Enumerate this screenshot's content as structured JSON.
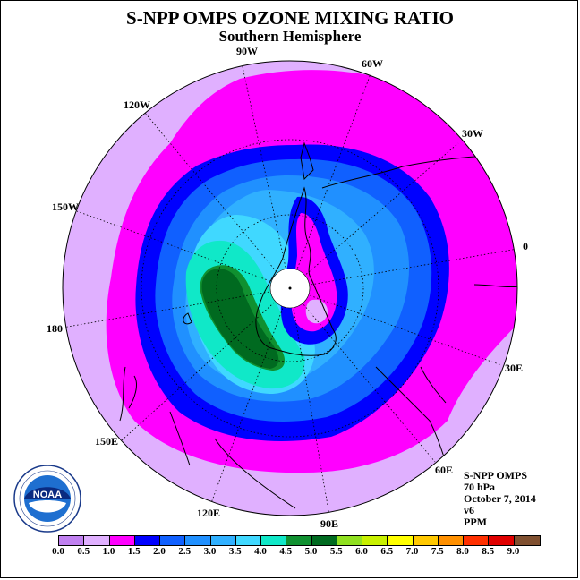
{
  "title": "S-NPP OMPS OZONE MIXING RATIO",
  "subtitle": "Southern Hemisphere",
  "longitude_labels": [
    "90W",
    "60W",
    "30W",
    "0",
    "30E",
    "60E",
    "90E",
    "120E",
    "150E",
    "180",
    "150W",
    "120W"
  ],
  "info": {
    "instrument": "S-NPP OMPS",
    "level": "70 hPa",
    "date": "October 7, 2014",
    "version": "v6",
    "units": "PPM"
  },
  "logo": {
    "text": "NOAA",
    "ring_text": "NATIONAL OCEANIC AND ATMOSPHERIC ADMINISTRATION · U.S. DEPARTMENT OF COMMERCE"
  },
  "colorbar": {
    "ticks": [
      "0.0",
      "0.5",
      "1.0",
      "1.5",
      "2.0",
      "2.5",
      "3.0",
      "3.5",
      "4.0",
      "4.5",
      "5.0",
      "5.5",
      "6.0",
      "6.5",
      "7.0",
      "7.5",
      "8.0",
      "8.5",
      "9.0"
    ],
    "colors": [
      "#c080f0",
      "#e0b0ff",
      "#ff00ff",
      "#0000ff",
      "#1060ff",
      "#2090ff",
      "#30b0ff",
      "#40d8ff",
      "#10e8c8",
      "#109030",
      "#006a20",
      "#90e020",
      "#c8f000",
      "#ffff00",
      "#ffc800",
      "#ff9000",
      "#ff3000",
      "#e00000",
      "#805030"
    ]
  },
  "map": {
    "projection": "south polar stereographic",
    "colors": {
      "outer": "#e0b0ff",
      "band1": "#ff00ff",
      "band2": "#0000ff",
      "band3": "#1060ff",
      "band4": "#2090ff",
      "band5": "#30b0ff",
      "band6": "#40d8ff",
      "band7": "#10e8c8",
      "band8": "#109030",
      "band9": "#006a20"
    }
  }
}
